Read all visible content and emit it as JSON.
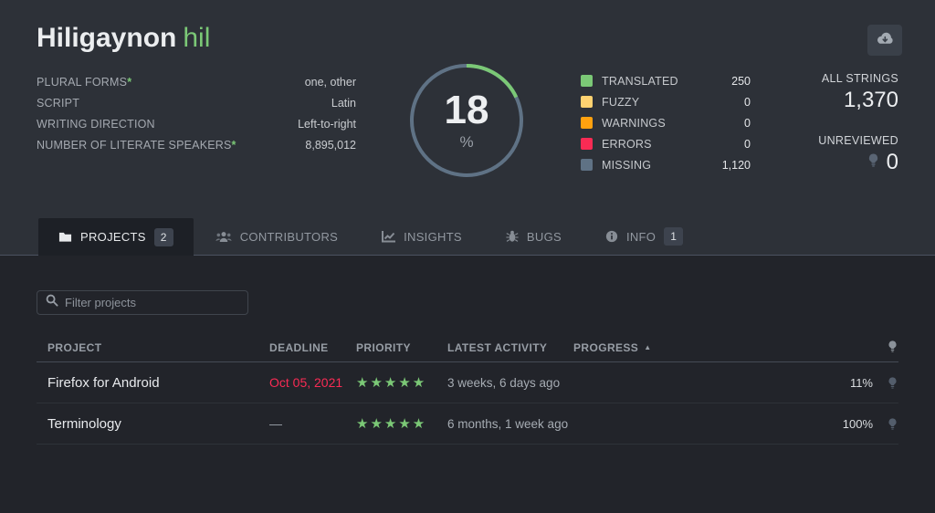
{
  "header": {
    "title": "Hiligaynon",
    "code": "hil"
  },
  "profile_fields": [
    {
      "label": "PLURAL FORMS",
      "star": true,
      "value": "one, other"
    },
    {
      "label": "SCRIPT",
      "star": false,
      "value": "Latin"
    },
    {
      "label": "WRITING DIRECTION",
      "star": false,
      "value": "Left-to-right"
    },
    {
      "label": "NUMBER OF LITERATE SPEAKERS",
      "star": true,
      "value": "8,895,012"
    }
  ],
  "progress_ring": {
    "percent": 18,
    "percent_text": "18",
    "symbol": "%"
  },
  "legend_items": [
    {
      "label": "TRANSLATED",
      "value": "250",
      "color": "#7bc876"
    },
    {
      "label": "FUZZY",
      "value": "0",
      "color": "#fed271"
    },
    {
      "label": "WARNINGS",
      "value": "0",
      "color": "#ffa10f"
    },
    {
      "label": "ERRORS",
      "value": "0",
      "color": "#f92b54"
    },
    {
      "label": "MISSING",
      "value": "1,120",
      "color": "#5f7285"
    }
  ],
  "totals": {
    "all_strings_label": "ALL STRINGS",
    "all_strings_value": "1,370",
    "unreviewed_label": "UNREVIEWED",
    "unreviewed_value": "0"
  },
  "tabs": [
    {
      "label": "PROJECTS",
      "badge": "2"
    },
    {
      "label": "CONTRIBUTORS"
    },
    {
      "label": "INSIGHTS"
    },
    {
      "label": "BUGS"
    },
    {
      "label": "INFO",
      "badge": "1"
    }
  ],
  "filter": {
    "placeholder": "Filter projects"
  },
  "table": {
    "headers": [
      "PROJECT",
      "DEADLINE",
      "PRIORITY",
      "LATEST ACTIVITY",
      "PROGRESS"
    ],
    "sort_arrow": "▲",
    "rows": [
      {
        "project": "Firefox for Android",
        "deadline": "Oct 05, 2021",
        "overdue": true,
        "priority": 5,
        "latest_activity": "3 weeks, 6 days ago",
        "progress": 11,
        "progress_text": "11%"
      },
      {
        "project": "Terminology",
        "deadline": "—",
        "overdue": false,
        "priority": 5,
        "latest_activity": "6 months, 1 week ago",
        "progress": 100,
        "progress_text": "100%"
      }
    ]
  },
  "colors": {
    "accent_green": "#7bc876",
    "missing_slate": "#5f7285",
    "overdue_red": "#f92b54"
  }
}
